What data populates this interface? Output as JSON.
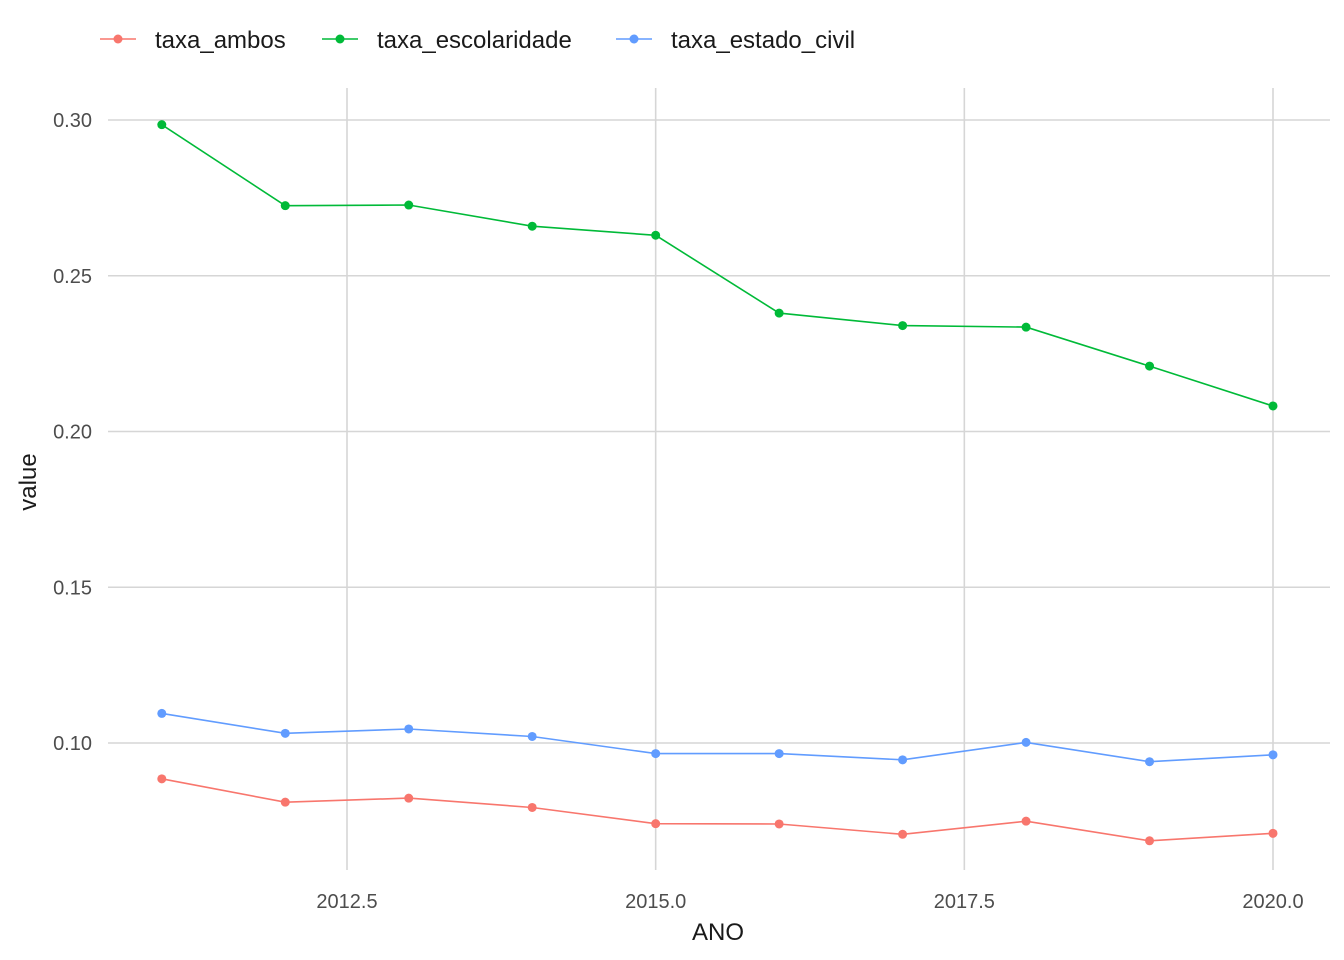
{
  "chart_data": {
    "type": "line",
    "title": "",
    "xlabel": "ANO",
    "ylabel": "value",
    "xlim": [
      2010.8,
      2020.2
    ],
    "ylim": [
      0.0615,
      0.3115
    ],
    "x_ticks": [
      2012.5,
      2015.0,
      2017.5,
      2020.0
    ],
    "x_tick_labels": [
      "2012.5",
      "2015.0",
      "2017.5",
      "2020.0"
    ],
    "y_ticks": [
      0.1,
      0.15,
      0.2,
      0.25,
      0.3
    ],
    "y_tick_labels": [
      "0.10",
      "0.15",
      "0.20",
      "0.25",
      "0.30"
    ],
    "grid": true,
    "legend_position": "top",
    "x": [
      2011,
      2012,
      2013,
      2014,
      2015,
      2016,
      2017,
      2018,
      2019,
      2020
    ],
    "series": [
      {
        "name": "taxa_ambos",
        "color": "#F8766D",
        "values": [
          0.0885,
          0.081,
          0.0823,
          0.0793,
          0.0741,
          0.074,
          0.0707,
          0.0749,
          0.0686,
          0.071
        ]
      },
      {
        "name": "taxa_escolaridade",
        "color": "#00BA38",
        "values": [
          0.2985,
          0.2725,
          0.2727,
          0.2659,
          0.263,
          0.238,
          0.234,
          0.2335,
          0.221,
          0.2082
        ]
      },
      {
        "name": "taxa_estado_civil",
        "color": "#619CFF",
        "values": [
          0.1095,
          0.1031,
          0.1045,
          0.1021,
          0.0966,
          0.0966,
          0.0946,
          0.1002,
          0.094,
          0.0962
        ]
      }
    ]
  }
}
